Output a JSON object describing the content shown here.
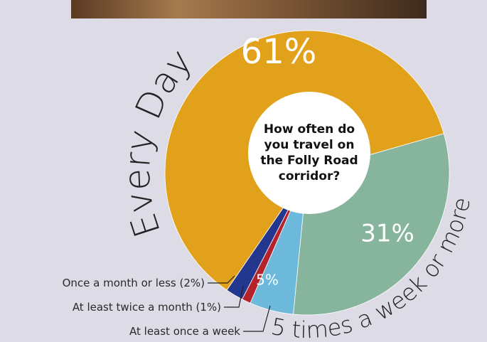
{
  "chart_data": {
    "type": "pie",
    "title": "How often do you travel on the Folly Road corridor?",
    "categories": [
      "5 times a week or more",
      "At least once a week",
      "At least twice a month (1%)",
      "Once a month or less (2%)",
      "Every Day"
    ],
    "values": [
      31,
      5,
      1,
      2,
      61
    ],
    "value_labels": [
      "31%",
      "5%",
      null,
      null,
      "61%"
    ],
    "colors": [
      "#86b49d",
      "#6cb9dc",
      "#b5222a",
      "#23378f",
      "#e2a11a"
    ]
  }
}
